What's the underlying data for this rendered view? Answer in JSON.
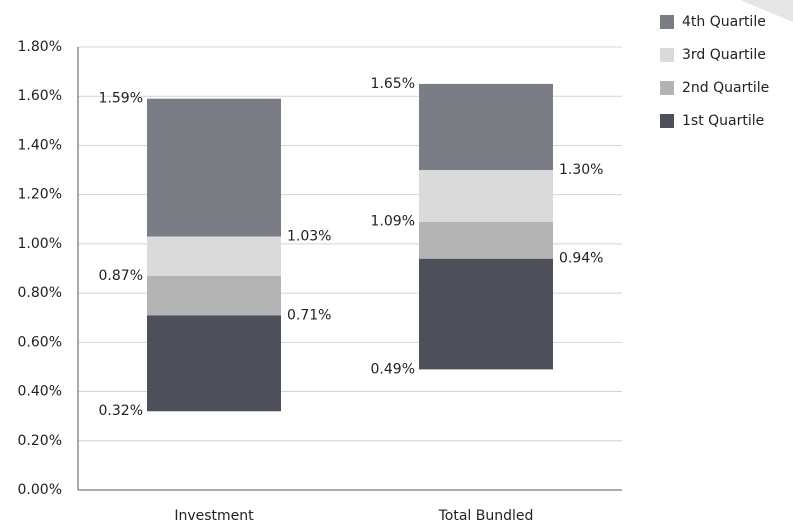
{
  "chart_data": {
    "type": "floating-stacked-bar",
    "categories": [
      "Investment",
      "Total Bundled"
    ],
    "series": [
      {
        "name": "1st Quartile",
        "color": "#4d505a"
      },
      {
        "name": "2nd Quartile",
        "color": "#b1b3b5"
      },
      {
        "name": "3rd Quartile",
        "color": "#d9dadb"
      },
      {
        "name": "4th Quartile",
        "color": "#7a7d85"
      }
    ],
    "boundaries": [
      [
        0.32,
        0.71,
        0.87,
        1.03,
        1.59
      ],
      [
        0.49,
        0.94,
        1.09,
        1.3,
        1.65
      ]
    ],
    "boundary_labels": [
      [
        "0.32%",
        "0.71%",
        "0.87%",
        "1.03%",
        "1.59%"
      ],
      [
        "0.49%",
        "0.94%",
        "1.09%",
        "1.30%",
        "1.65%"
      ]
    ],
    "ylim": [
      0,
      1.8
    ],
    "yticks": [
      {
        "value": 0,
        "label": "0.00%"
      },
      {
        "value": 0.2,
        "label": "0.20%"
      },
      {
        "value": 0.4,
        "label": "0.40%"
      },
      {
        "value": 0.6,
        "label": "0.60%"
      },
      {
        "value": 0.8,
        "label": "0.80%"
      },
      {
        "value": 1.0,
        "label": "1.00%"
      },
      {
        "value": 1.2,
        "label": "1.20%"
      },
      {
        "value": 1.4,
        "label": "1.40%"
      },
      {
        "value": 1.6,
        "label": "1.60%"
      },
      {
        "value": 1.8,
        "label": "1.80%"
      }
    ],
    "grid": true,
    "legend": "right"
  }
}
